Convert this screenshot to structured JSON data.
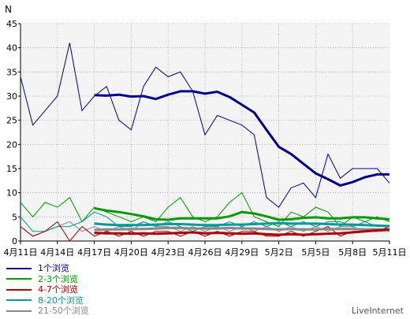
{
  "chart_data": {
    "type": "line",
    "title": "",
    "ylabel": "N",
    "xlabel": "",
    "ylim": [
      0,
      45
    ],
    "ytick_step": 5,
    "grid": true,
    "x_count": 31,
    "x_tick_labels": [
      {
        "index": 0,
        "label": "4月11日"
      },
      {
        "index": 3,
        "label": "4月14日"
      },
      {
        "index": 6,
        "label": "4月17日"
      },
      {
        "index": 9,
        "label": "4月20日"
      },
      {
        "index": 12,
        "label": "4月23日"
      },
      {
        "index": 15,
        "label": "4月26日"
      },
      {
        "index": 18,
        "label": "4月29日"
      },
      {
        "index": 21,
        "label": "5月2日"
      },
      {
        "index": 24,
        "label": "5月5日"
      },
      {
        "index": 27,
        "label": "5月8日"
      },
      {
        "index": 30,
        "label": "5月11日"
      }
    ],
    "series": [
      {
        "name": "1个浏览",
        "color": "#00008b",
        "values": [
          34,
          24,
          27,
          30,
          41,
          27,
          30,
          32,
          25,
          23,
          32,
          36,
          34,
          35,
          31,
          22,
          26,
          25,
          24,
          22,
          9,
          7,
          11,
          12,
          9,
          18,
          13,
          15,
          15,
          15,
          12
        ],
        "average": [
          null,
          null,
          null,
          null,
          null,
          null,
          30.2,
          30.1,
          30.3,
          29.9,
          30.0,
          29.4,
          30.3,
          31.0,
          31.0,
          30.5,
          30.9,
          29.8,
          28.2,
          26.6,
          23.0,
          19.5,
          18.0,
          16.0,
          14.0,
          12.8,
          11.5,
          12.2,
          13.2,
          13.8,
          13.8
        ]
      },
      {
        "name": "2-3个浏览",
        "color": "#009900",
        "values": [
          8,
          5,
          8,
          7,
          9,
          4,
          7,
          6,
          5,
          4,
          5,
          4,
          7,
          9,
          5,
          4,
          5,
          8,
          10,
          5,
          4,
          3,
          6,
          5,
          7,
          6,
          3,
          5,
          4,
          5,
          4
        ],
        "average": [
          null,
          null,
          null,
          null,
          null,
          null,
          6.8,
          6.3,
          6.0,
          5.6,
          5.1,
          4.5,
          4.4,
          4.7,
          4.7,
          4.7,
          4.7,
          5.1,
          6.0,
          5.7,
          5.1,
          4.4,
          4.5,
          4.8,
          4.9,
          4.7,
          4.7,
          4.9,
          4.9,
          4.7,
          4.5
        ]
      },
      {
        "name": "4-7个浏览",
        "color": "#aa0000",
        "values": [
          3,
          1,
          2,
          4,
          0,
          3,
          1,
          2,
          1,
          2,
          1,
          2,
          2,
          1,
          2,
          1,
          2,
          1,
          2,
          2,
          1,
          1,
          2,
          1,
          2,
          3,
          1,
          2,
          2,
          2,
          3
        ],
        "average": [
          null,
          null,
          null,
          null,
          null,
          null,
          1.7,
          1.6,
          1.6,
          1.5,
          1.6,
          1.5,
          1.6,
          1.7,
          1.8,
          1.6,
          1.7,
          1.6,
          1.5,
          1.6,
          1.4,
          1.3,
          1.4,
          1.3,
          1.4,
          1.5,
          1.6,
          1.8,
          2.0,
          2.2,
          2.4
        ]
      },
      {
        "name": "8-20个浏览",
        "color": "#009999",
        "values": [
          5,
          2,
          2,
          3,
          3,
          4,
          6,
          5,
          3,
          3,
          4,
          3,
          4,
          3,
          2,
          3,
          3,
          4,
          3,
          4,
          3,
          4,
          3,
          4,
          3,
          4,
          4,
          3,
          4,
          3,
          3
        ],
        "average": [
          null,
          null,
          null,
          null,
          null,
          null,
          3.6,
          3.4,
          3.3,
          3.3,
          3.3,
          3.4,
          3.5,
          3.5,
          3.4,
          3.3,
          3.3,
          3.4,
          3.4,
          3.5,
          3.6,
          3.7,
          3.6,
          3.6,
          3.6,
          3.5,
          3.4,
          3.4,
          3.3,
          3.2,
          3.1
        ]
      },
      {
        "name": "21-50个浏览",
        "color": "#888888",
        "values": [
          3,
          1,
          2,
          3,
          4,
          2,
          3,
          2,
          3,
          2,
          4,
          3,
          3,
          2,
          3,
          2,
          3,
          2,
          3,
          2,
          3,
          2,
          3,
          2,
          3,
          2,
          3,
          3,
          2,
          2,
          2
        ],
        "average": [
          null,
          null,
          null,
          null,
          null,
          null,
          2.3,
          2.4,
          2.4,
          2.5,
          2.5,
          2.6,
          2.7,
          2.7,
          2.6,
          2.6,
          2.6,
          2.7,
          2.6,
          2.6,
          2.5,
          2.4,
          2.5,
          2.4,
          2.4,
          2.5,
          2.5,
          2.5,
          2.4,
          2.4,
          2.3
        ]
      }
    ]
  },
  "legend_items": [
    {
      "label": "1个浏览",
      "color": "#00008b"
    },
    {
      "label": "2-3个浏览",
      "color": "#009900"
    },
    {
      "label": "4-7个浏览",
      "color": "#aa0000"
    },
    {
      "label": "8-20个浏览",
      "color": "#009999"
    },
    {
      "label": "21-50个浏览",
      "color": "#888888"
    }
  ],
  "branding": "LiveInternet",
  "colors": {
    "plot_background": "#f4f4f4",
    "grid": "#b0b0b0",
    "axis": "#000000",
    "text": "#000000"
  }
}
